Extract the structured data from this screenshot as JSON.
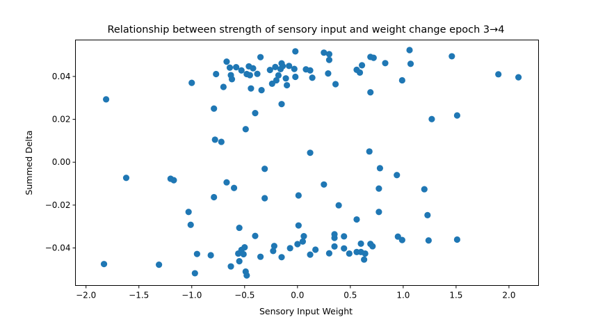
{
  "chart_data": {
    "type": "scatter",
    "title": "Relationship between strength of sensory input and weight change epoch 3→4",
    "xlabel": "Sensory Input Weight",
    "ylabel": "Summed Delta",
    "xlim": [
      -2.1,
      2.28
    ],
    "ylim": [
      -0.0575,
      0.057
    ],
    "grid": false,
    "marker_color": "#1f77b4",
    "xticks": [
      -2.0,
      -1.5,
      -1.0,
      -0.5,
      0.0,
      0.5,
      1.0,
      1.5,
      2.0
    ],
    "xtick_labels": [
      "−2.0",
      "−1.5",
      "−1.0",
      "−0.5",
      "0.0",
      "0.5",
      "1.0",
      "1.5",
      "2.0"
    ],
    "yticks": [
      -0.04,
      -0.02,
      0.0,
      0.02,
      0.04
    ],
    "ytick_labels": [
      "−0.04",
      "−0.02",
      "0.00",
      "0.02",
      "0.04"
    ],
    "points": [
      [
        -1.81,
        0.0293
      ],
      [
        -1.0,
        0.037
      ],
      [
        -0.79,
        0.025
      ],
      [
        -0.78,
        0.0105
      ],
      [
        -0.72,
        0.0095
      ],
      [
        -0.77,
        0.0411
      ],
      [
        -0.7,
        0.0351
      ],
      [
        -0.67,
        0.0469
      ],
      [
        -0.64,
        0.0441
      ],
      [
        -0.63,
        0.0406
      ],
      [
        -0.62,
        0.0387
      ],
      [
        -0.58,
        0.0443
      ],
      [
        -0.53,
        0.0428
      ],
      [
        -0.49,
        0.0154
      ],
      [
        -0.48,
        0.0411
      ],
      [
        -0.46,
        0.0447
      ],
      [
        -0.45,
        0.0406
      ],
      [
        -0.44,
        0.0344
      ],
      [
        -0.42,
        0.0438
      ],
      [
        -0.4,
        0.0229
      ],
      [
        -0.38,
        0.0412
      ],
      [
        -0.35,
        0.049
      ],
      [
        -0.34,
        0.0336
      ],
      [
        -0.26,
        0.043
      ],
      [
        -0.24,
        0.0366
      ],
      [
        -0.21,
        0.0444
      ],
      [
        -0.2,
        0.0382
      ],
      [
        -0.18,
        0.0405
      ],
      [
        -0.16,
        0.0434
      ],
      [
        -0.15,
        0.0461
      ],
      [
        -0.14,
        0.0448
      ],
      [
        -0.15,
        0.0271
      ],
      [
        -0.11,
        0.0391
      ],
      [
        -0.1,
        0.0359
      ],
      [
        -0.08,
        0.0449
      ],
      [
        -0.03,
        0.0435
      ],
      [
        -0.02,
        0.0398
      ],
      [
        -0.02,
        0.0517
      ],
      [
        0.08,
        0.0433
      ],
      [
        0.12,
        0.0428
      ],
      [
        0.14,
        0.0394
      ],
      [
        0.25,
        0.0511
      ],
      [
        0.29,
        0.0414
      ],
      [
        0.3,
        0.0477
      ],
      [
        0.3,
        0.0504
      ],
      [
        0.36,
        0.0364
      ],
      [
        0.56,
        0.0431
      ],
      [
        0.59,
        0.0418
      ],
      [
        0.61,
        0.0452
      ],
      [
        0.69,
        0.0326
      ],
      [
        0.69,
        0.0491
      ],
      [
        0.72,
        0.0487
      ],
      [
        0.83,
        0.0462
      ],
      [
        0.99,
        0.0382
      ],
      [
        1.06,
        0.0523
      ],
      [
        1.07,
        0.0459
      ],
      [
        1.46,
        0.0494
      ],
      [
        1.51,
        0.0218
      ],
      [
        1.27,
        0.0201
      ],
      [
        1.9,
        0.041
      ],
      [
        2.09,
        0.0396
      ],
      [
        0.12,
        0.0044
      ],
      [
        0.68,
        0.005
      ],
      [
        0.78,
        -0.0028
      ],
      [
        0.94,
        -0.006
      ],
      [
        0.77,
        -0.0123
      ],
      [
        1.2,
        -0.0126
      ],
      [
        1.23,
        -0.0247
      ],
      [
        0.77,
        -0.0232
      ],
      [
        -1.62,
        -0.0073
      ],
      [
        -1.2,
        -0.0077
      ],
      [
        -1.17,
        -0.0084
      ],
      [
        -0.67,
        -0.0094
      ],
      [
        -0.6,
        -0.012
      ],
      [
        -0.79,
        -0.0163
      ],
      [
        -0.31,
        -0.0031
      ],
      [
        -0.31,
        -0.0168
      ],
      [
        0.01,
        -0.0155
      ],
      [
        0.25,
        -0.0104
      ],
      [
        0.39,
        -0.0201
      ],
      [
        -1.03,
        -0.0232
      ],
      [
        -1.01,
        -0.0292
      ],
      [
        -0.55,
        -0.0306
      ],
      [
        0.01,
        -0.0295
      ],
      [
        0.56,
        -0.0267
      ],
      [
        -1.83,
        -0.0475
      ],
      [
        -1.31,
        -0.0478
      ],
      [
        -0.97,
        -0.0518
      ],
      [
        -0.95,
        -0.0428
      ],
      [
        -0.82,
        -0.0434
      ],
      [
        -0.63,
        -0.0486
      ],
      [
        -0.56,
        -0.0426
      ],
      [
        -0.55,
        -0.0462
      ],
      [
        -0.53,
        -0.0409
      ],
      [
        -0.5,
        -0.0397
      ],
      [
        -0.51,
        -0.0429
      ],
      [
        -0.49,
        -0.051
      ],
      [
        -0.48,
        -0.0528
      ],
      [
        -0.4,
        -0.0344
      ],
      [
        -0.35,
        -0.0441
      ],
      [
        -0.23,
        -0.0414
      ],
      [
        -0.22,
        -0.0391
      ],
      [
        -0.15,
        -0.0443
      ],
      [
        -0.07,
        -0.0401
      ],
      [
        0.0,
        -0.0382
      ],
      [
        0.05,
        -0.037
      ],
      [
        0.06,
        -0.0345
      ],
      [
        0.12,
        -0.0431
      ],
      [
        0.17,
        -0.0408
      ],
      [
        0.3,
        -0.0425
      ],
      [
        0.35,
        -0.0353
      ],
      [
        0.35,
        -0.0336
      ],
      [
        0.35,
        -0.0393
      ],
      [
        0.44,
        -0.0346
      ],
      [
        0.44,
        -0.0402
      ],
      [
        0.49,
        -0.0426
      ],
      [
        0.56,
        -0.0419
      ],
      [
        0.6,
        -0.038
      ],
      [
        0.6,
        -0.0419
      ],
      [
        0.63,
        -0.0454
      ],
      [
        0.64,
        -0.0426
      ],
      [
        0.69,
        -0.0381
      ],
      [
        0.71,
        -0.0392
      ],
      [
        0.95,
        -0.0347
      ],
      [
        0.99,
        -0.0363
      ],
      [
        1.24,
        -0.0365
      ],
      [
        1.51,
        -0.0361
      ]
    ]
  }
}
